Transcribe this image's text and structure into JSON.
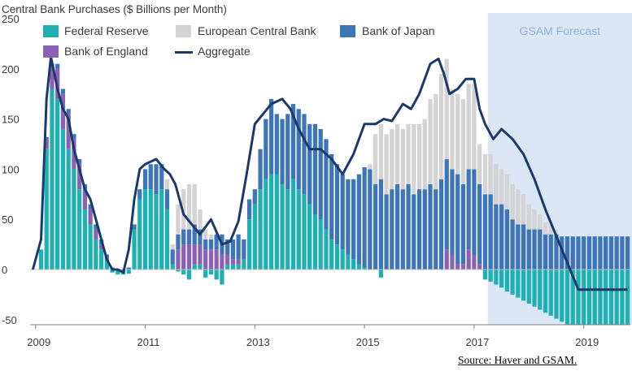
{
  "chart_data": {
    "type": "bar",
    "title": "Central Bank Purchases ($ Billions per Month)",
    "xlabel": "",
    "ylabel": "",
    "x_ticks": [
      "2009",
      "2011",
      "2013",
      "2015",
      "2017",
      "2019"
    ],
    "y_ticks": [
      250,
      200,
      150,
      100,
      50,
      0,
      -50
    ],
    "ylim": [
      -55,
      250
    ],
    "xlim": [
      2008.9,
      2019.85
    ],
    "forecast": {
      "label": "GSAM Forecast",
      "start": 2017.25
    },
    "legend": [
      {
        "name": "Federal Reserve",
        "kind": "bar",
        "color": "#1fb0b4"
      },
      {
        "name": "European Central Bank",
        "kind": "bar",
        "color": "#d3d3d3"
      },
      {
        "name": "Bank of Japan",
        "kind": "bar",
        "color": "#3e74b8"
      },
      {
        "name": "Bank of England",
        "kind": "bar",
        "color": "#8b61b5"
      },
      {
        "name": "Aggregate",
        "kind": "line",
        "color": "#1b3a6b"
      }
    ],
    "series_order": [
      "Federal Reserve",
      "Bank of England",
      "Bank of Japan",
      "European Central Bank"
    ],
    "stacked_bars": [
      [
        "2009.10",
        20,
        0,
        0,
        0
      ],
      [
        "2009.20",
        120,
        10,
        2,
        0
      ],
      [
        "2009.30",
        180,
        20,
        5,
        0
      ],
      [
        "2009.40",
        170,
        30,
        5,
        0
      ],
      [
        "2009.50",
        140,
        35,
        5,
        0
      ],
      [
        "2009.60",
        120,
        35,
        5,
        0
      ],
      [
        "2009.70",
        100,
        30,
        5,
        0
      ],
      [
        "2009.80",
        80,
        25,
        5,
        0
      ],
      [
        "2009.90",
        60,
        20,
        5,
        0
      ],
      [
        "2010.00",
        45,
        15,
        5,
        0
      ],
      [
        "2010.10",
        30,
        10,
        5,
        0
      ],
      [
        "2010.20",
        20,
        5,
        5,
        0
      ],
      [
        "2010.30",
        10,
        2,
        3,
        0
      ],
      [
        "2010.40",
        -3,
        0,
        2,
        0
      ],
      [
        "2010.50",
        -5,
        0,
        0,
        0
      ],
      [
        "2010.60",
        -5,
        0,
        0,
        0
      ],
      [
        "2010.70",
        -4,
        0,
        2,
        0
      ],
      [
        "2010.80",
        40,
        0,
        5,
        0
      ],
      [
        "2010.90",
        70,
        0,
        10,
        0
      ],
      [
        "2011.00",
        80,
        0,
        20,
        0
      ],
      [
        "2011.10",
        80,
        0,
        25,
        0
      ],
      [
        "2011.20",
        75,
        0,
        30,
        0
      ],
      [
        "2011.30",
        80,
        0,
        25,
        0
      ],
      [
        "2011.40",
        60,
        0,
        20,
        10
      ],
      [
        "2011.50",
        5,
        0,
        15,
        5
      ],
      [
        "2011.60",
        -2,
        20,
        15,
        30
      ],
      [
        "2011.70",
        -5,
        25,
        15,
        40
      ],
      [
        "2011.80",
        -10,
        25,
        15,
        45
      ],
      [
        "2011.90",
        5,
        20,
        20,
        40
      ],
      [
        "2012.00",
        5,
        20,
        15,
        20
      ],
      [
        "2012.10",
        -8,
        20,
        10,
        10
      ],
      [
        "2012.20",
        -5,
        20,
        10,
        5
      ],
      [
        "2012.30",
        -10,
        20,
        15,
        0
      ],
      [
        "2012.40",
        -15,
        15,
        20,
        0
      ],
      [
        "2012.50",
        5,
        10,
        15,
        0
      ],
      [
        "2012.60",
        5,
        5,
        20,
        0
      ],
      [
        "2012.70",
        5,
        5,
        25,
        0
      ],
      [
        "2012.80",
        10,
        0,
        20,
        0
      ],
      [
        "2012.90",
        50,
        0,
        20,
        0
      ],
      [
        "2013.00",
        65,
        0,
        15,
        0
      ],
      [
        "2013.10",
        80,
        0,
        40,
        0
      ],
      [
        "2013.20",
        90,
        0,
        60,
        0
      ],
      [
        "2013.30",
        95,
        0,
        75,
        0
      ],
      [
        "2013.40",
        95,
        0,
        60,
        0
      ],
      [
        "2013.50",
        85,
        0,
        65,
        0
      ],
      [
        "2013.60",
        80,
        0,
        75,
        0
      ],
      [
        "2013.70",
        90,
        0,
        75,
        0
      ],
      [
        "2013.80",
        80,
        0,
        80,
        0
      ],
      [
        "2013.90",
        75,
        0,
        80,
        0
      ],
      [
        "2014.00",
        65,
        0,
        80,
        0
      ],
      [
        "2014.10",
        55,
        0,
        90,
        0
      ],
      [
        "2014.20",
        50,
        0,
        90,
        0
      ],
      [
        "2014.30",
        40,
        0,
        90,
        0
      ],
      [
        "2014.40",
        30,
        0,
        85,
        0
      ],
      [
        "2014.50",
        25,
        0,
        80,
        0
      ],
      [
        "2014.60",
        20,
        0,
        75,
        0
      ],
      [
        "2014.70",
        15,
        0,
        75,
        0
      ],
      [
        "2014.80",
        10,
        0,
        80,
        0
      ],
      [
        "2014.90",
        5,
        0,
        90,
        0
      ],
      [
        "2015.00",
        2,
        0,
        100,
        0
      ],
      [
        "2015.10",
        0,
        0,
        100,
        5
      ],
      [
        "2015.20",
        0,
        0,
        85,
        50
      ],
      [
        "2015.30",
        -8,
        0,
        90,
        55
      ],
      [
        "2015.40",
        0,
        0,
        75,
        60
      ],
      [
        "2015.50",
        0,
        0,
        80,
        60
      ],
      [
        "2015.60",
        0,
        0,
        85,
        60
      ],
      [
        "2015.70",
        0,
        0,
        80,
        60
      ],
      [
        "2015.80",
        0,
        0,
        85,
        60
      ],
      [
        "2015.90",
        0,
        0,
        75,
        70
      ],
      [
        "2016.00",
        0,
        0,
        80,
        65
      ],
      [
        "2016.10",
        0,
        0,
        80,
        70
      ],
      [
        "2016.20",
        0,
        0,
        85,
        85
      ],
      [
        "2016.30",
        0,
        0,
        80,
        95
      ],
      [
        "2016.40",
        0,
        0,
        90,
        105
      ],
      [
        "2016.50",
        0,
        20,
        90,
        100
      ],
      [
        "2016.60",
        0,
        15,
        85,
        80
      ],
      [
        "2016.70",
        0,
        5,
        90,
        80
      ],
      [
        "2016.80",
        0,
        5,
        80,
        85
      ],
      [
        "2016.90",
        0,
        20,
        80,
        85
      ],
      [
        "2017.00",
        0,
        15,
        85,
        85
      ],
      [
        "2017.10",
        0,
        5,
        80,
        40
      ],
      [
        "2017.20",
        -10,
        0,
        75,
        40
      ],
      [
        "2017.30",
        -12,
        0,
        75,
        40
      ],
      [
        "2017.40",
        -15,
        0,
        65,
        40
      ],
      [
        "2017.50",
        -18,
        0,
        65,
        35
      ],
      [
        "2017.60",
        -22,
        0,
        60,
        35
      ],
      [
        "2017.70",
        -25,
        0,
        50,
        35
      ],
      [
        "2017.80",
        -28,
        0,
        45,
        35
      ],
      [
        "2017.90",
        -31,
        0,
        45,
        30
      ],
      [
        "2018.00",
        -34,
        0,
        40,
        25
      ],
      [
        "2018.10",
        -37,
        0,
        40,
        20
      ],
      [
        "2018.20",
        -40,
        0,
        40,
        15
      ],
      [
        "2018.30",
        -43,
        0,
        35,
        12
      ],
      [
        "2018.40",
        -46,
        0,
        35,
        10
      ],
      [
        "2018.50",
        -49,
        0,
        35,
        5
      ],
      [
        "2018.60",
        -52,
        0,
        33,
        0
      ],
      [
        "2018.70",
        -55,
        0,
        33,
        0
      ],
      [
        "2018.80",
        -55,
        0,
        33,
        0
      ],
      [
        "2018.90",
        -55,
        0,
        33,
        0
      ],
      [
        "2019.00",
        -55,
        0,
        33,
        0
      ],
      [
        "2019.10",
        -55,
        0,
        33,
        0
      ],
      [
        "2019.20",
        -55,
        0,
        33,
        0
      ],
      [
        "2019.30",
        -55,
        0,
        33,
        0
      ],
      [
        "2019.40",
        -55,
        0,
        33,
        0
      ],
      [
        "2019.50",
        -55,
        0,
        33,
        0
      ],
      [
        "2019.60",
        -55,
        0,
        33,
        0
      ],
      [
        "2019.70",
        -55,
        0,
        33,
        0
      ],
      [
        "2019.80",
        -55,
        0,
        33,
        0
      ]
    ],
    "aggregate_line": {
      "x": [
        2008.95,
        2009.1,
        2009.2,
        2009.28,
        2009.4,
        2009.5,
        2009.6,
        2009.7,
        2009.8,
        2009.9,
        2010.0,
        2010.1,
        2010.2,
        2010.3,
        2010.4,
        2010.5,
        2010.6,
        2010.7,
        2010.8,
        2010.9,
        2011.0,
        2011.2,
        2011.35,
        2011.45,
        2011.55,
        2011.7,
        2011.85,
        2012.0,
        2012.2,
        2012.4,
        2012.55,
        2012.7,
        2012.85,
        2013.0,
        2013.15,
        2013.3,
        2013.5,
        2013.65,
        2013.8,
        2014.0,
        2014.2,
        2014.4,
        2014.6,
        2014.8,
        2015.0,
        2015.2,
        2015.35,
        2015.5,
        2015.7,
        2015.85,
        2016.0,
        2016.2,
        2016.35,
        2016.45,
        2016.55,
        2016.7,
        2016.85,
        2017.0,
        2017.1,
        2017.2,
        2017.35,
        2017.5,
        2017.7,
        2017.9,
        2018.1,
        2018.3,
        2018.45,
        2018.6,
        2018.75,
        2018.9,
        2019.0,
        2019.3,
        2019.6,
        2019.8
      ],
      "y": [
        0,
        30,
        170,
        212,
        180,
        160,
        150,
        120,
        100,
        80,
        70,
        50,
        30,
        10,
        0,
        0,
        -3,
        20,
        70,
        100,
        105,
        110,
        100,
        95,
        85,
        55,
        45,
        35,
        50,
        25,
        28,
        48,
        95,
        145,
        155,
        165,
        170,
        160,
        140,
        120,
        120,
        110,
        95,
        115,
        145,
        145,
        150,
        148,
        165,
        160,
        175,
        205,
        210,
        195,
        175,
        180,
        190,
        190,
        160,
        145,
        130,
        140,
        130,
        115,
        90,
        60,
        40,
        20,
        0,
        -20,
        -20,
        -20,
        -20,
        -20
      ]
    }
  }
}
